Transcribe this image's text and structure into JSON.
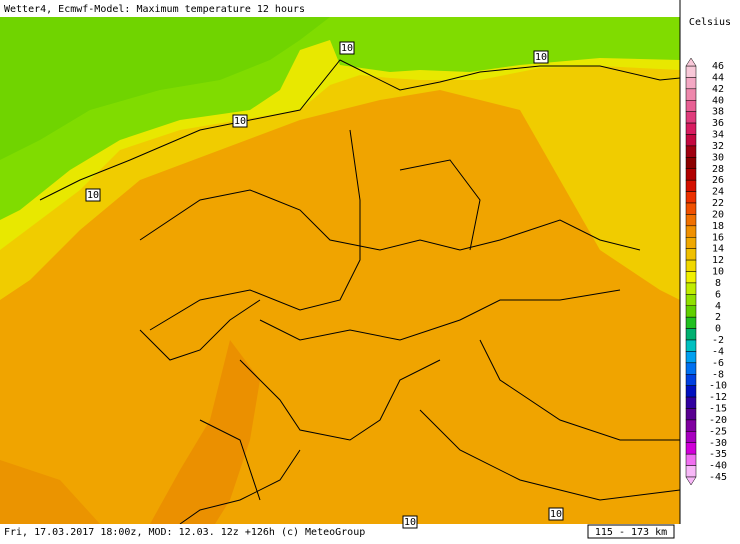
{
  "header": {
    "title": "Wetter4, Ecmwf-Model: Maximum temperature 12 hours"
  },
  "legend": {
    "unit": "Celsius",
    "levels": [
      46,
      44,
      42,
      40,
      38,
      36,
      34,
      32,
      30,
      28,
      26,
      24,
      22,
      20,
      18,
      16,
      14,
      12,
      10,
      8,
      6,
      4,
      2,
      0,
      -2,
      -4,
      -6,
      -8,
      -10,
      -12,
      -15,
      -20,
      -25,
      -30,
      -35,
      -40,
      -45
    ],
    "colors": [
      "#f8c8d8",
      "#f4a8c4",
      "#ee88ac",
      "#e86094",
      "#e03c7c",
      "#d81c60",
      "#c40840",
      "#a00010",
      "#8c0000",
      "#b00000",
      "#d41000",
      "#ec3000",
      "#f05000",
      "#f07000",
      "#f09000",
      "#f0a800",
      "#f0c000",
      "#f0d800",
      "#f0f000",
      "#c0ec00",
      "#90e000",
      "#60d000",
      "#20c020",
      "#00b070",
      "#00c0c0",
      "#00a0f0",
      "#0070f0",
      "#0040e0",
      "#0010c0",
      "#3000a0",
      "#580090",
      "#8000a0",
      "#a800c0",
      "#d000d8",
      "#f070f0",
      "#f8b8f8"
    ]
  },
  "map": {
    "contour_labels": [
      "10",
      "10",
      "10",
      "10",
      "10",
      "10"
    ]
  },
  "footer": {
    "info": "Fri, 17.03.2017 18:00z, MOD: 12.03. 12z +126h (c) MeteoGroup",
    "scale": "115 - 173 km"
  }
}
